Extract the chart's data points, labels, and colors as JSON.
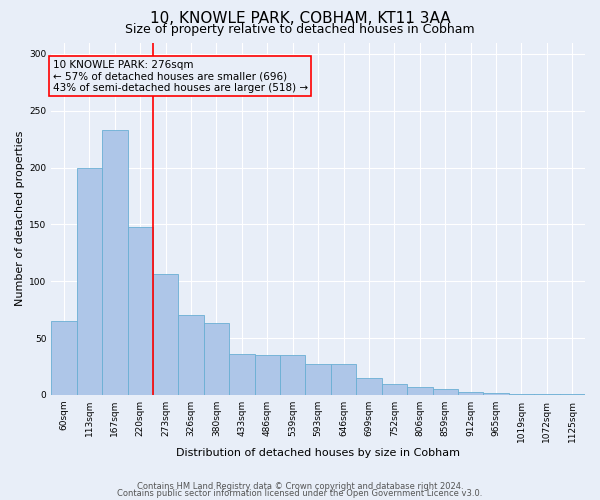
{
  "title": "10, KNOWLE PARK, COBHAM, KT11 3AA",
  "subtitle": "Size of property relative to detached houses in Cobham",
  "xlabel": "Distribution of detached houses by size in Cobham",
  "ylabel": "Number of detached properties",
  "categories": [
    "60sqm",
    "113sqm",
    "167sqm",
    "220sqm",
    "273sqm",
    "326sqm",
    "380sqm",
    "433sqm",
    "486sqm",
    "539sqm",
    "593sqm",
    "646sqm",
    "699sqm",
    "752sqm",
    "806sqm",
    "859sqm",
    "912sqm",
    "965sqm",
    "1019sqm",
    "1072sqm",
    "1125sqm"
  ],
  "values": [
    65,
    200,
    233,
    148,
    106,
    70,
    63,
    36,
    35,
    35,
    27,
    27,
    15,
    10,
    7,
    5,
    3,
    2,
    1,
    1,
    1
  ],
  "bar_color": "#aec6e8",
  "bar_edge_color": "#6aafd4",
  "background_color": "#e8eef8",
  "grid_color": "#ffffff",
  "annotation_box_text": "10 KNOWLE PARK: 276sqm\n← 57% of detached houses are smaller (696)\n43% of semi-detached houses are larger (518) →",
  "annotation_box_color": "red",
  "vline_color": "red",
  "vline_pos": 3.5,
  "ylim": [
    0,
    310
  ],
  "yticks": [
    0,
    50,
    100,
    150,
    200,
    250,
    300
  ],
  "footer_line1": "Contains HM Land Registry data © Crown copyright and database right 2024.",
  "footer_line2": "Contains public sector information licensed under the Open Government Licence v3.0.",
  "title_fontsize": 11,
  "subtitle_fontsize": 9,
  "axis_label_fontsize": 8,
  "tick_fontsize": 6.5,
  "annotation_fontsize": 7.5,
  "footer_fontsize": 6
}
